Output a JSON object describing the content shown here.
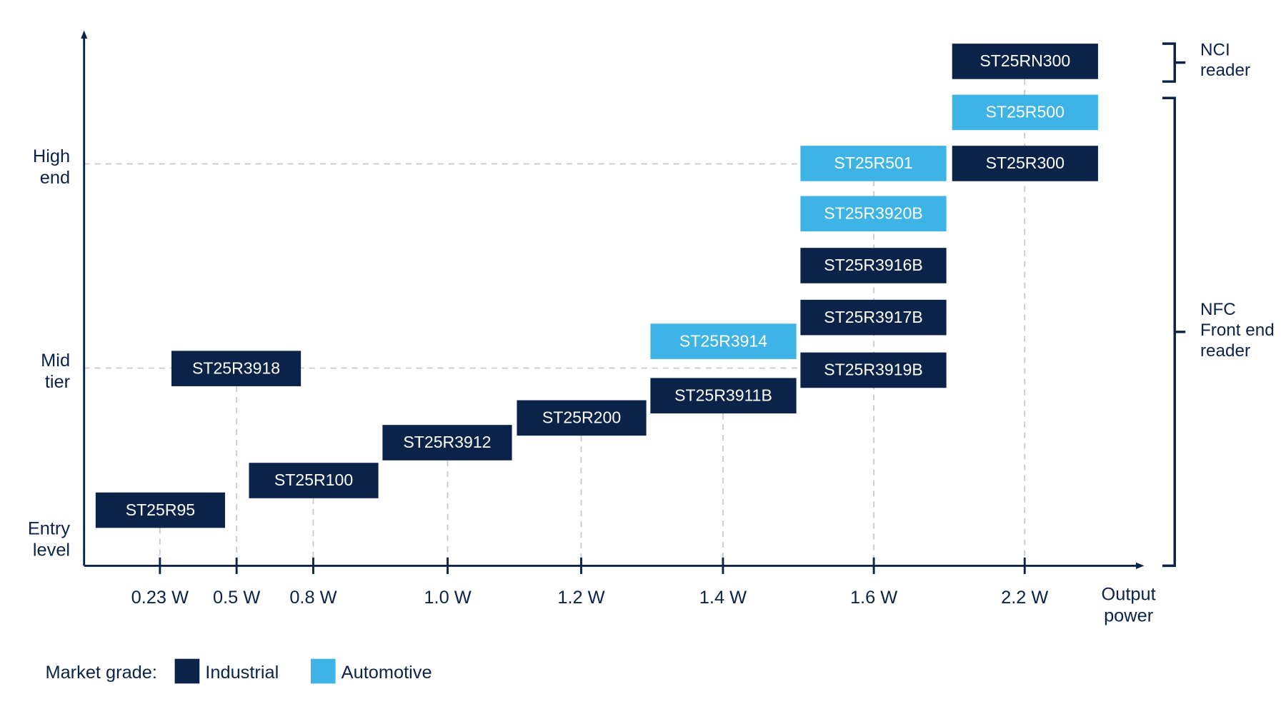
{
  "y_levels": [
    {
      "lines": [
        "High",
        "end"
      ]
    },
    {
      "lines": [
        "Mid",
        "tier"
      ]
    },
    {
      "lines": [
        "Entry",
        "level"
      ]
    }
  ],
  "x_ticks": [
    "0.23 W",
    "0.5 W",
    "0.8 W",
    "1.0 W",
    "1.2 W",
    "1.4 W",
    "1.6 W",
    "2.2 W"
  ],
  "x_axis_label": [
    "Output",
    "power"
  ],
  "products": [
    {
      "label": "ST25RN300",
      "color": "#0b2349"
    },
    {
      "label": "ST25R500",
      "color": "#3db4e5"
    },
    {
      "label": "ST25R300",
      "color": "#0b2349"
    },
    {
      "label": "ST25R501",
      "color": "#3db4e5"
    },
    {
      "label": "ST25R3920B",
      "color": "#3db4e5"
    },
    {
      "label": "ST25R3916B",
      "color": "#0b2349"
    },
    {
      "label": "ST25R3917B",
      "color": "#0b2349"
    },
    {
      "label": "ST25R3919B",
      "color": "#0b2349"
    },
    {
      "label": "ST25R3914",
      "color": "#3db4e5"
    },
    {
      "label": "ST25R3911B",
      "color": "#0b2349"
    },
    {
      "label": "ST25R200",
      "color": "#0b2349"
    },
    {
      "label": "ST25R3912",
      "color": "#0b2349"
    },
    {
      "label": "ST25R100",
      "color": "#0b2349"
    },
    {
      "label": "ST25R3918",
      "color": "#0b2349"
    },
    {
      "label": "ST25R95",
      "color": "#0b2349"
    }
  ],
  "groups": [
    {
      "lines": [
        "NCI",
        "reader"
      ]
    },
    {
      "lines": [
        "NFC",
        "Front end",
        "reader"
      ]
    }
  ],
  "legend": {
    "title": "Market grade:",
    "items": [
      {
        "label": "Industrial",
        "color": "#0b2349"
      },
      {
        "label": "Automotive",
        "color": "#3db4e5"
      }
    ]
  }
}
